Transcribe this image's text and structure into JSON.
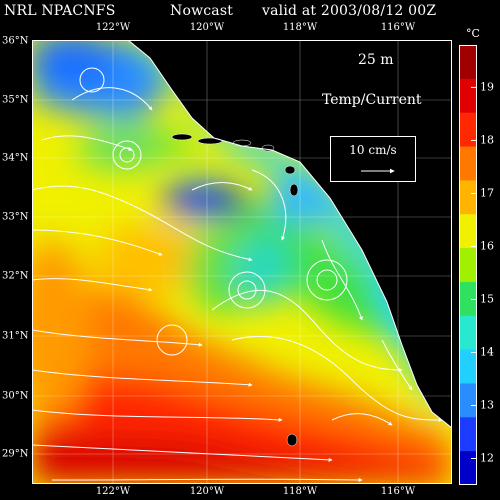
{
  "header": {
    "model": "NRL NPACNFS",
    "product": "Nowcast",
    "valid": "valid at 2003/08/12 00Z"
  },
  "map": {
    "depth": "25 m",
    "variable": "Temp/Current",
    "reference_vector": "10 cm/s",
    "lon_ticks_top": [
      "122°W",
      "120°W",
      "118°W",
      "116°W"
    ],
    "lon_ticks_bottom": [
      "122°W",
      "120°W",
      "118°W",
      "116°W"
    ],
    "lat_ticks": [
      "36°N",
      "35°N",
      "34°N",
      "33°N",
      "32°N",
      "31°N",
      "30°N",
      "29°N"
    ],
    "lon_values": [
      -122,
      -120,
      -118,
      -116
    ],
    "lat_values": [
      36,
      35,
      34,
      33,
      32,
      31,
      30,
      29
    ]
  },
  "colorbar": {
    "unit": "°C",
    "labels": [
      "19",
      "18",
      "17",
      "16",
      "15",
      "14",
      "13",
      "12"
    ],
    "range": [
      11.5,
      19.8
    ],
    "colors": [
      "#0000c8",
      "#1e3cff",
      "#2a8cff",
      "#22d0ff",
      "#28e8d0",
      "#30e060",
      "#a0f000",
      "#f0f000",
      "#ffb400",
      "#ff7800",
      "#ff2800",
      "#e00000",
      "#a00000"
    ]
  },
  "colors": {
    "land": "#000000",
    "vector": "#ffffff"
  }
}
